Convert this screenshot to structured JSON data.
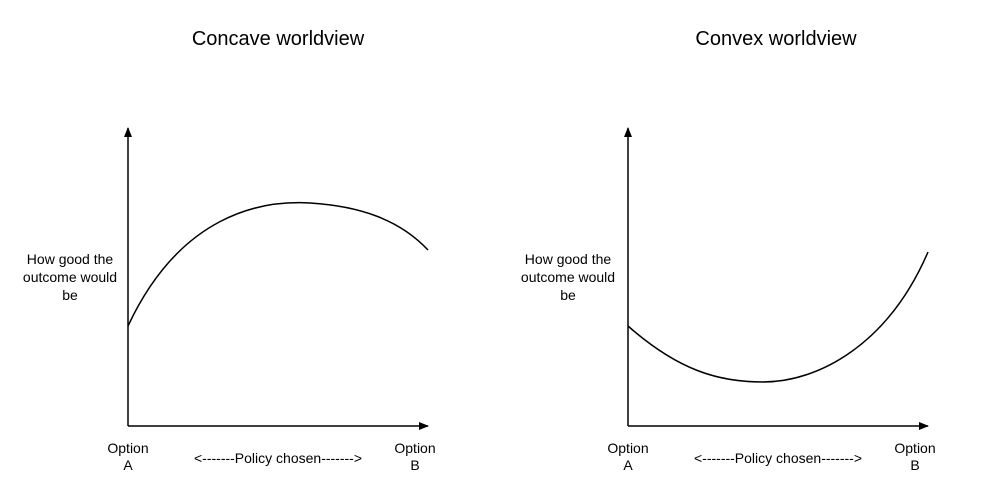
{
  "panels": [
    {
      "title": "Concave worldview",
      "ylabel": "How good the outcome would be",
      "x_start_label": "Option A",
      "x_end_label": "Option B",
      "xlabel": "<-------Policy chosen------->",
      "curve": "concave"
    },
    {
      "title": "Convex worldview",
      "ylabel": "How good the outcome would be",
      "x_start_label": "Option A",
      "x_end_label": "Option B",
      "xlabel": "<-------Policy chosen------->",
      "curve": "convex"
    }
  ]
}
